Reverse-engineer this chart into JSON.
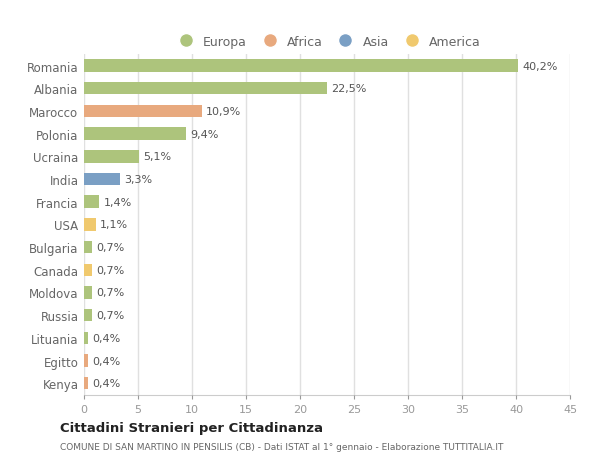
{
  "countries": [
    "Romania",
    "Albania",
    "Marocco",
    "Polonia",
    "Ucraina",
    "India",
    "Francia",
    "USA",
    "Bulgaria",
    "Canada",
    "Moldova",
    "Russia",
    "Lituania",
    "Egitto",
    "Kenya"
  ],
  "values": [
    40.2,
    22.5,
    10.9,
    9.4,
    5.1,
    3.3,
    1.4,
    1.1,
    0.7,
    0.7,
    0.7,
    0.7,
    0.4,
    0.4,
    0.4
  ],
  "labels": [
    "40,2%",
    "22,5%",
    "10,9%",
    "9,4%",
    "5,1%",
    "3,3%",
    "1,4%",
    "1,1%",
    "0,7%",
    "0,7%",
    "0,7%",
    "0,7%",
    "0,4%",
    "0,4%",
    "0,4%"
  ],
  "colors": [
    "#adc47c",
    "#adc47c",
    "#e8a97e",
    "#adc47c",
    "#adc47c",
    "#7a9fc4",
    "#adc47c",
    "#f0c96e",
    "#adc47c",
    "#f0c96e",
    "#adc47c",
    "#adc47c",
    "#adc47c",
    "#e8a97e",
    "#e8a97e"
  ],
  "legend_labels": [
    "Europa",
    "Africa",
    "Asia",
    "America"
  ],
  "legend_colors": [
    "#adc47c",
    "#e8a97e",
    "#7a9fc4",
    "#f0c96e"
  ],
  "xlim": [
    0,
    45
  ],
  "xticks": [
    0,
    5,
    10,
    15,
    20,
    25,
    30,
    35,
    40,
    45
  ],
  "title": "Cittadini Stranieri per Cittadinanza",
  "subtitle": "COMUNE DI SAN MARTINO IN PENSILIS (CB) - Dati ISTAT al 1° gennaio - Elaborazione TUTTITALIA.IT",
  "bg_color": "#ffffff",
  "plot_bg_color": "#ffffff",
  "grid_color": "#e0e0e0",
  "bar_height": 0.55,
  "label_fontsize": 8.0,
  "ytick_fontsize": 8.5,
  "xtick_fontsize": 8.0
}
